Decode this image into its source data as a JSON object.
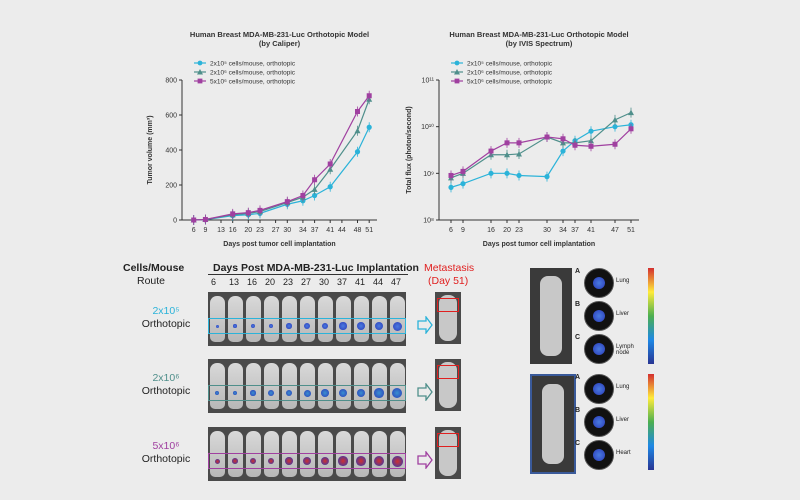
{
  "chart_data": [
    {
      "type": "line",
      "title": "Human Breast MDA-MB-231-Luc Orthotopic Model",
      "subtitle": "(by Caliper)",
      "xlabel": "Days post tumor cell implantation",
      "ylabel": "Tumor volume (mm³)",
      "x": [
        6,
        9,
        13,
        16,
        20,
        23,
        27,
        30,
        34,
        37,
        41,
        44,
        48,
        51
      ],
      "xlim": [
        3,
        53
      ],
      "ylim": [
        0,
        800
      ],
      "yticks": [
        0,
        200,
        400,
        600,
        800
      ],
      "series": [
        {
          "name": "2x10⁵ cells/mouse, orthotopic",
          "color": "#2bb3d9",
          "marker": "circle",
          "values": [
            0,
            2,
            null,
            25,
            30,
            38,
            null,
            90,
            110,
            140,
            190,
            null,
            390,
            530
          ]
        },
        {
          "name": "2x10⁶ cells/mouse, orthotopic",
          "color": "#4f8f8b",
          "marker": "triangle",
          "values": [
            0,
            3,
            null,
            30,
            38,
            48,
            null,
            100,
            130,
            175,
            290,
            null,
            510,
            690
          ]
        },
        {
          "name": "5x10⁶ cells/mouse, orthotopic",
          "color": "#a040a0",
          "marker": "square",
          "values": [
            0,
            3,
            null,
            35,
            42,
            55,
            null,
            105,
            140,
            230,
            320,
            null,
            620,
            710
          ]
        }
      ]
    },
    {
      "type": "line",
      "title": "Human Breast MDA-MB-231-Luc Orthotopic Model",
      "subtitle": "(by IVIS Spectrum)",
      "xlabel": "Days post tumor cell implantation",
      "ylabel": "Total flux (photon/second)",
      "yscale": "log",
      "x": [
        6,
        9,
        16,
        20,
        23,
        30,
        34,
        37,
        41,
        47,
        51
      ],
      "xlim": [
        3,
        53
      ],
      "ylim": [
        100000000,
        100000000000
      ],
      "ytick_labels": [
        "10⁸",
        "10⁹",
        "10¹⁰",
        "10¹¹"
      ],
      "series": [
        {
          "name": "2x10⁵ cells/mouse, orthotopic",
          "color": "#2bb3d9",
          "marker": "circle",
          "values": [
            500000000,
            600000000,
            1000000000,
            1000000000,
            900000000,
            850000000,
            3000000000,
            5000000000,
            8000000000,
            10000000000,
            11000000000
          ]
        },
        {
          "name": "2x10⁶ cells/mouse, orthotopic",
          "color": "#4f8f8b",
          "marker": "triangle",
          "values": [
            800000000,
            1000000000,
            2500000000,
            2500000000,
            2600000000,
            6000000000,
            4500000000,
            4500000000,
            5000000000,
            14000000000,
            20000000000
          ]
        },
        {
          "name": "5x10⁶ cells/mouse, orthotopic",
          "color": "#a040a0",
          "marker": "square",
          "values": [
            900000000,
            1100000000,
            3000000000,
            4500000000,
            4500000000,
            6000000000,
            5500000000,
            4000000000,
            3800000000,
            4200000000,
            9000000000
          ]
        }
      ]
    }
  ],
  "imaging": {
    "col_header": "Cells/Mouse",
    "route_header": "Route",
    "days_header": "Days Post MDA-MB-231-Luc Implantation",
    "days": [
      "6",
      "13",
      "16",
      "20",
      "23",
      "27",
      "30",
      "37",
      "41",
      "44",
      "47"
    ],
    "metastasis_title": "Metastasis",
    "metastasis_day": "(Day 51)",
    "rows": [
      {
        "dose": "2x10⁵",
        "route": "Orthotopic",
        "color": "#2bb3d9"
      },
      {
        "dose": "2x10⁶",
        "route": "Orthotopic",
        "color": "#4f8f8b"
      },
      {
        "dose": "5x10⁶",
        "route": "Orthotopic",
        "color": "#a040a0"
      }
    ]
  },
  "organs": {
    "top": [
      {
        "letter": "A",
        "label": "Lung"
      },
      {
        "letter": "B",
        "label": "Liver"
      },
      {
        "letter": "C",
        "label": "Lymph node"
      }
    ],
    "bottom": [
      {
        "letter": "A",
        "label": "Lung"
      },
      {
        "letter": "B",
        "label": "Liver"
      },
      {
        "letter": "C",
        "label": "Heart"
      }
    ]
  }
}
